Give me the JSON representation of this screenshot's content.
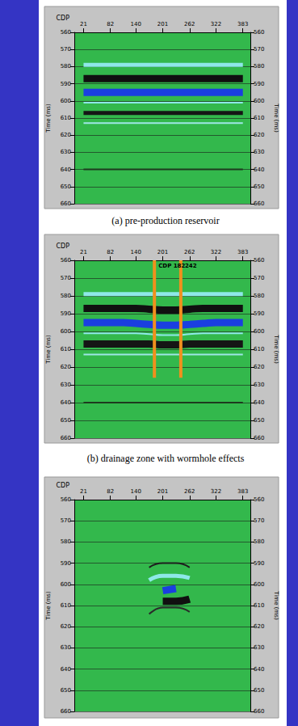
{
  "chart_data": [
    {
      "type": "line",
      "title": "(a) pre-production reservoir",
      "x_label": "CDP",
      "y_label": "Time (ms)",
      "x": [
        21,
        51,
        82,
        111,
        140,
        170,
        201,
        231,
        262,
        292,
        322,
        353,
        383
      ],
      "xlim": [
        0,
        400
      ],
      "xticks": [
        21,
        82,
        140,
        201,
        262,
        322,
        383
      ],
      "ylim": [
        560,
        660
      ],
      "yticks": [
        560,
        570,
        580,
        590,
        600,
        610,
        620,
        630,
        640,
        650,
        660
      ],
      "grid": true,
      "series": [
        {
          "color": "#8ee8e8",
          "line_style": "medium",
          "values": [
            579,
            579,
            579,
            579,
            579,
            579,
            579,
            579,
            579,
            579,
            579,
            579,
            579
          ]
        },
        {
          "color": "#101010",
          "line_style": "thick",
          "values": [
            587,
            587,
            587,
            587,
            587,
            587,
            587,
            587,
            587,
            587,
            587,
            587,
            587
          ]
        },
        {
          "color": "#1a3fe0",
          "line_style": "thick",
          "values": [
            595,
            595,
            595,
            595,
            595,
            595,
            595,
            595,
            595,
            595,
            595,
            595,
            595
          ]
        },
        {
          "color": "#8ee8e8",
          "line_style": "thin",
          "values": [
            601,
            601,
            601,
            601,
            601,
            601,
            601,
            601,
            601,
            601,
            601,
            601,
            601
          ]
        },
        {
          "color": "#151515",
          "line_style": "medium",
          "values": [
            607,
            607,
            607,
            607,
            607,
            607,
            607,
            607,
            607,
            607,
            607,
            607,
            607
          ]
        },
        {
          "color": "#9ee6e6",
          "line_style": "thin",
          "values": [
            613,
            613,
            613,
            613,
            613,
            613,
            613,
            613,
            613,
            613,
            613,
            613,
            613
          ]
        },
        {
          "color": "#1e3a1e",
          "line_style": "thin",
          "values": [
            640,
            640,
            640,
            640,
            640,
            640,
            640,
            640,
            640,
            640,
            640,
            640,
            640
          ]
        }
      ]
    },
    {
      "type": "line",
      "title": "(b) drainage zone with wormhole effects",
      "x_label": "CDP",
      "y_label": "Time (ms)",
      "x": [
        21,
        51,
        82,
        111,
        140,
        170,
        201,
        231,
        262,
        292,
        322,
        353,
        383
      ],
      "xlim": [
        0,
        400
      ],
      "xticks": [
        21,
        82,
        140,
        201,
        262,
        322,
        383
      ],
      "ylim": [
        560,
        660
      ],
      "yticks": [
        560,
        570,
        580,
        590,
        600,
        610,
        620,
        630,
        640,
        650,
        660
      ],
      "grid": true,
      "series": [
        {
          "color": "#8ee8e8",
          "line_style": "medium",
          "values": [
            579,
            579,
            579,
            579,
            579,
            579,
            579,
            579,
            579,
            579,
            579,
            579,
            579
          ]
        },
        {
          "color": "#101010",
          "line_style": "thick",
          "values": [
            587,
            587,
            587,
            587,
            587,
            587.5,
            588,
            588,
            587.5,
            587,
            587,
            587,
            587
          ]
        },
        {
          "color": "#1a3fe0",
          "line_style": "thick",
          "values": [
            595,
            595,
            595,
            595,
            595.5,
            596,
            596.5,
            596.5,
            596,
            595.5,
            595,
            595,
            595
          ]
        },
        {
          "color": "#8ee8e8",
          "line_style": "thin",
          "values": [
            601,
            601,
            601,
            601,
            601,
            601.5,
            602,
            602,
            601.5,
            601,
            601,
            601,
            601
          ]
        },
        {
          "color": "#151515",
          "line_style": "thick",
          "values": [
            607,
            607,
            607,
            607,
            607,
            607,
            607.5,
            607.5,
            607,
            607,
            607,
            607,
            607
          ]
        },
        {
          "color": "#9ee6e6",
          "line_style": "thin",
          "values": [
            613,
            613,
            613,
            613,
            613,
            613,
            613,
            613,
            613,
            613,
            613,
            613,
            613
          ]
        },
        {
          "color": "#1e3a1e",
          "line_style": "thin",
          "values": [
            640,
            640,
            640,
            640,
            640,
            640,
            640,
            640,
            640,
            640,
            640,
            640,
            640
          ]
        }
      ],
      "annotations": [
        {
          "x": 182,
          "y": [
            560,
            626
          ],
          "label": "CDP 182",
          "color": "#f0901e"
        },
        {
          "x": 242,
          "y": [
            560,
            626
          ],
          "label": "242",
          "color": "#f0901e"
        }
      ]
    },
    {
      "type": "line",
      "x_label": "CDP",
      "y_label": "Time (ms)",
      "x": [
        21,
        51,
        82,
        111,
        140,
        170,
        201,
        231,
        262,
        292,
        322,
        353,
        383
      ],
      "xlim": [
        0,
        400
      ],
      "xticks": [
        21,
        82,
        140,
        201,
        262,
        322,
        383
      ],
      "ylim": [
        560,
        660
      ],
      "yticks": [
        560,
        570,
        580,
        590,
        600,
        610,
        620,
        630,
        640,
        650,
        660
      ],
      "grid": true,
      "series": [
        {
          "color": "#1e1e1e",
          "line_style": "thin",
          "values": [
            null,
            null,
            null,
            null,
            null,
            592,
            590,
            590,
            592,
            null,
            null,
            null,
            null
          ]
        },
        {
          "color": "#8ee8e8",
          "line_style": "medium",
          "values": [
            null,
            null,
            null,
            null,
            null,
            598,
            596,
            596,
            597,
            null,
            null,
            null,
            null
          ]
        },
        {
          "color": "#1a3fe0",
          "line_style": "thick",
          "values": [
            null,
            null,
            null,
            null,
            null,
            null,
            603,
            602,
            null,
            null,
            null,
            null,
            null
          ]
        },
        {
          "color": "#101010",
          "line_style": "thick",
          "values": [
            null,
            null,
            null,
            null,
            null,
            null,
            608,
            608,
            607,
            null,
            null,
            null,
            null
          ]
        },
        {
          "color": "#2a2a2a",
          "line_style": "thin",
          "values": [
            null,
            null,
            null,
            null,
            null,
            614,
            611,
            611,
            613,
            null,
            null,
            null,
            null
          ]
        }
      ]
    }
  ]
}
